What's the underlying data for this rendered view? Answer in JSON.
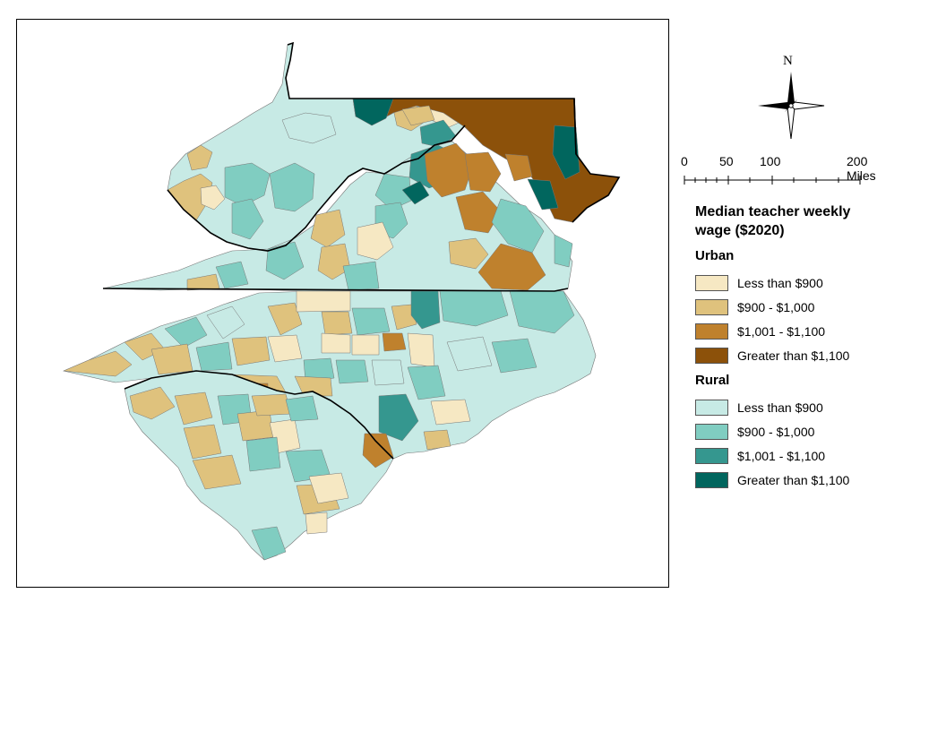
{
  "map": {
    "north_label": "N",
    "scale": {
      "ticks": [
        "0",
        "50",
        "100",
        "200 Miles"
      ]
    }
  },
  "legend": {
    "title_line1": "Median teacher weekly",
    "title_line2": "wage ($2020)",
    "groups": [
      {
        "title": "Urban",
        "items": [
          {
            "label": "Less than $900",
            "color": "#f6e8c3"
          },
          {
            "label": "$900 - $1,000",
            "color": "#dfc27d"
          },
          {
            "label": "$1,001 - $1,100",
            "color": "#bf812d"
          },
          {
            "label": "Greater than $1,100",
            "color": "#8c510a"
          }
        ]
      },
      {
        "title": "Rural",
        "items": [
          {
            "label": "Less than $900",
            "color": "#c7eae5"
          },
          {
            "label": "$900 - $1,000",
            "color": "#80cdc1"
          },
          {
            "label": "$1,001 - $1,100",
            "color": "#35978f"
          },
          {
            "label": "Greater than $1,100",
            "color": "#01665e"
          }
        ]
      }
    ]
  }
}
